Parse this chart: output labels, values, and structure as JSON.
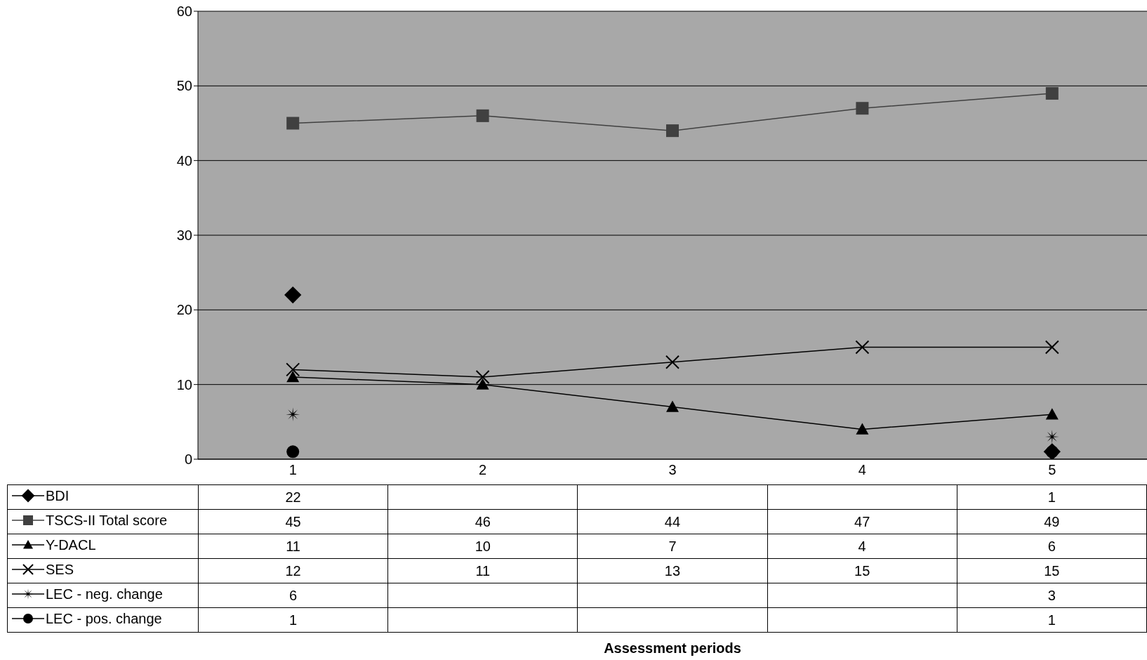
{
  "chart_data": {
    "type": "line",
    "annotations": [
      "Assessment periods"
    ],
    "categories": [
      "1",
      "2",
      "3",
      "4",
      "5"
    ],
    "series": [
      {
        "name": "BDI",
        "type": "scatter",
        "color": "#000000",
        "marker": "diamond",
        "values": [
          22,
          null,
          null,
          null,
          1
        ]
      },
      {
        "name": "TSCS-II Total score",
        "color": "#404040",
        "marker": "square",
        "values": [
          45,
          46,
          44,
          47,
          49
        ]
      },
      {
        "name": "Y-DACL",
        "color": "#000000",
        "marker": "triangle",
        "values": [
          11,
          10,
          7,
          4,
          6
        ]
      },
      {
        "name": "SES",
        "color": "#000000",
        "marker": "cross",
        "values": [
          12,
          11,
          13,
          15,
          15
        ]
      },
      {
        "name": "LEC - neg. change",
        "type": "scatter",
        "color": "#000000",
        "marker": "star",
        "values": [
          6,
          null,
          null,
          null,
          3
        ]
      },
      {
        "name": "LEC - pos. change",
        "type": "scatter",
        "color": "#000000",
        "marker": "circle",
        "values": [
          1,
          null,
          null,
          null,
          1
        ]
      }
    ],
    "ylim": [
      0,
      60
    ],
    "yticks": [
      0,
      10,
      20,
      30,
      40,
      50,
      60
    ],
    "grid": "y",
    "legend": "bottom",
    "data_labels": true
  }
}
